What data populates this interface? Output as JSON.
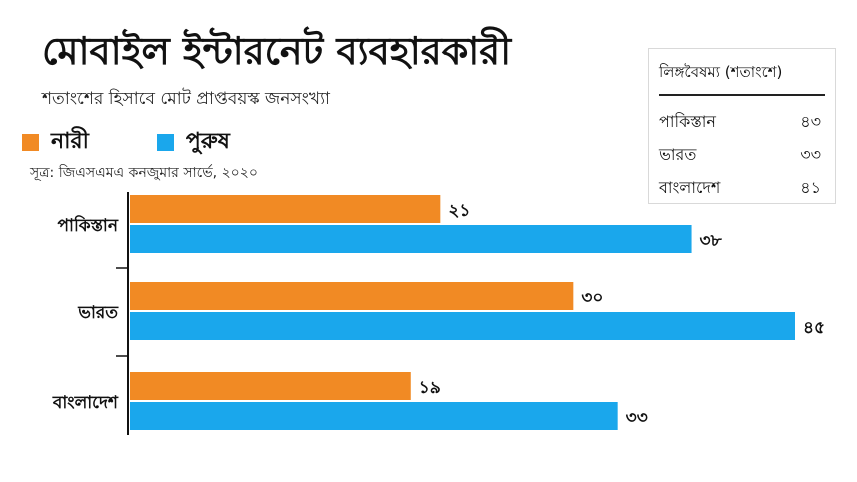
{
  "title": "মোবাইল ইন্টারনেট ব্যবহারকারী",
  "subtitle": "শতাংশের হিসাবে মোট প্রাপ্তবয়স্ক জনসংখ্যা",
  "source": "সূত্র: জিএসএমএ কনজুমার সার্ভে, ২০২০",
  "colors": {
    "female": "#f18a24",
    "male": "#1aa7ec",
    "axis": "#111111"
  },
  "legend": [
    {
      "label": "নারী",
      "color": "#f18a24"
    },
    {
      "label": "পুরুষ",
      "color": "#1aa7ec"
    }
  ],
  "gender_gap": {
    "title": "লিঙ্গবৈষম্য (শতাংশে)",
    "rows": [
      {
        "country": "পাকিস্তান",
        "value": "৪৩"
      },
      {
        "country": "ভারত",
        "value": "৩৩"
      },
      {
        "country": "বাংলাদেশ",
        "value": "৪১"
      }
    ]
  },
  "chart_data": {
    "type": "bar",
    "orientation": "horizontal",
    "categories": [
      "পাকিস্তান",
      "ভারত",
      "বাংলাদেশ"
    ],
    "series": [
      {
        "name": "নারী",
        "values": [
          21,
          30,
          19
        ],
        "labels": [
          "২১",
          "৩০",
          "১৯"
        ]
      },
      {
        "name": "পুরুষ",
        "values": [
          38,
          45,
          33
        ],
        "labels": [
          "৩৮",
          "৪৫",
          "৩৩"
        ]
      }
    ],
    "xlim": [
      0,
      45
    ],
    "grid": false,
    "legend_position": "top-left"
  }
}
